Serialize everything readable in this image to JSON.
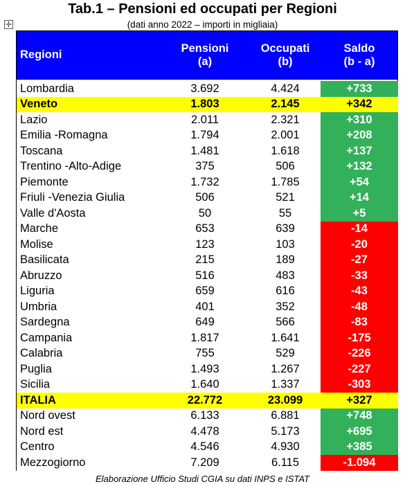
{
  "title": "Tab.1 – Pensioni ed occupati per Regioni",
  "subtitle": "(dati anno 2022 – importi in migliaia)",
  "header": {
    "regioni": "Regioni",
    "pensioni": "Pensioni",
    "pensioni_sub": "(a)",
    "occupati": "Occupati",
    "occupati_sub": "(b)",
    "saldo": "Saldo",
    "saldo_sub": "(b - a)"
  },
  "rows": [
    {
      "regione": "Lombardia",
      "pensioni": "3.692",
      "occupati": "4.424",
      "saldo": "+733",
      "sign": "pos",
      "highlight": false
    },
    {
      "regione": "Veneto",
      "pensioni": "1.803",
      "occupati": "2.145",
      "saldo": "+342",
      "sign": "pos",
      "highlight": true
    },
    {
      "regione": "Lazio",
      "pensioni": "2.011",
      "occupati": "2.321",
      "saldo": "+310",
      "sign": "pos",
      "highlight": false
    },
    {
      "regione": "Emilia -Romagna",
      "pensioni": "1.794",
      "occupati": "2.001",
      "saldo": "+208",
      "sign": "pos",
      "highlight": false
    },
    {
      "regione": "Toscana",
      "pensioni": "1.481",
      "occupati": "1.618",
      "saldo": "+137",
      "sign": "pos",
      "highlight": false
    },
    {
      "regione": "Trentino -Alto-Adige",
      "pensioni": "375",
      "occupati": "506",
      "saldo": "+132",
      "sign": "pos",
      "highlight": false
    },
    {
      "regione": "Piemonte",
      "pensioni": "1.732",
      "occupati": "1.785",
      "saldo": "+54",
      "sign": "pos",
      "highlight": false
    },
    {
      "regione": "Friuli -Venezia Giulia",
      "pensioni": "506",
      "occupati": "521",
      "saldo": "+14",
      "sign": "pos",
      "highlight": false
    },
    {
      "regione": "Valle d'Aosta",
      "pensioni": "50",
      "occupati": "55",
      "saldo": "+5",
      "sign": "pos",
      "highlight": false
    },
    {
      "regione": "Marche",
      "pensioni": "653",
      "occupati": "639",
      "saldo": "-14",
      "sign": "neg",
      "highlight": false
    },
    {
      "regione": "Molise",
      "pensioni": "123",
      "occupati": "103",
      "saldo": "-20",
      "sign": "neg",
      "highlight": false
    },
    {
      "regione": "Basilicata",
      "pensioni": "215",
      "occupati": "189",
      "saldo": "-27",
      "sign": "neg",
      "highlight": false
    },
    {
      "regione": "Abruzzo",
      "pensioni": "516",
      "occupati": "483",
      "saldo": "-33",
      "sign": "neg",
      "highlight": false
    },
    {
      "regione": "Liguria",
      "pensioni": "659",
      "occupati": "616",
      "saldo": "-43",
      "sign": "neg",
      "highlight": false
    },
    {
      "regione": "Umbria",
      "pensioni": "401",
      "occupati": "352",
      "saldo": "-48",
      "sign": "neg",
      "highlight": false
    },
    {
      "regione": "Sardegna",
      "pensioni": "649",
      "occupati": "566",
      "saldo": "-83",
      "sign": "neg",
      "highlight": false
    },
    {
      "regione": "Campania",
      "pensioni": "1.817",
      "occupati": "1.641",
      "saldo": "-175",
      "sign": "neg",
      "highlight": false
    },
    {
      "regione": "Calabria",
      "pensioni": "755",
      "occupati": "529",
      "saldo": "-226",
      "sign": "neg",
      "highlight": false
    },
    {
      "regione": "Puglia",
      "pensioni": "1.493",
      "occupati": "1.267",
      "saldo": "-227",
      "sign": "neg",
      "highlight": false
    },
    {
      "regione": "Sicilia",
      "pensioni": "1.640",
      "occupati": "1.337",
      "saldo": "-303",
      "sign": "neg",
      "highlight": false
    },
    {
      "regione": "ITALIA",
      "pensioni": "22.772",
      "occupati": "23.099",
      "saldo": "+327",
      "sign": "pos",
      "highlight": true
    },
    {
      "regione": "Nord ovest",
      "pensioni": "6.133",
      "occupati": "6.881",
      "saldo": "+748",
      "sign": "pos",
      "highlight": false
    },
    {
      "regione": "Nord est",
      "pensioni": "4.478",
      "occupati": "5.173",
      "saldo": "+695",
      "sign": "pos",
      "highlight": false
    },
    {
      "regione": "Centro",
      "pensioni": "4.546",
      "occupati": "4.930",
      "saldo": "+385",
      "sign": "pos",
      "highlight": false
    },
    {
      "regione": "Mezzogiorno",
      "pensioni": "7.209",
      "occupati": "6.115",
      "saldo": "-1.094",
      "sign": "neg",
      "highlight": false
    }
  ],
  "source": "Elaborazione Ufficio Studi CGIA su dati INPS e ISTAT",
  "colors": {
    "header_bg": "#0000ff",
    "positive": "#33b05a",
    "negative": "#ff0000",
    "highlight": "#ffff00"
  },
  "icons": {
    "table_move_handle": "move-cross-icon"
  }
}
